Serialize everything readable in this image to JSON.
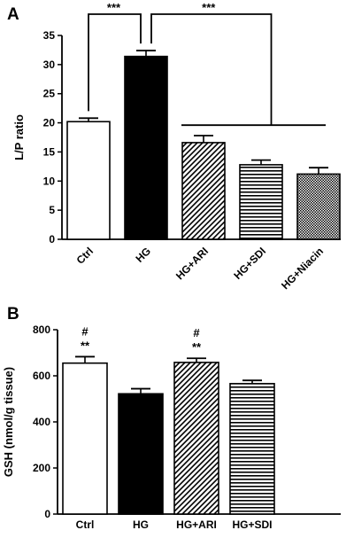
{
  "chart_data": [
    {
      "type": "bar",
      "panel": "A",
      "ylabel": "L/P ratio",
      "xlabel": "",
      "ylim": [
        0,
        35
      ],
      "yticks": [
        0,
        5,
        10,
        15,
        20,
        25,
        30,
        35
      ],
      "categories": [
        "Ctrl",
        "HG",
        "HG+ARI",
        "HG+SDI",
        "HG+Niacin"
      ],
      "values": [
        20.2,
        31.4,
        16.6,
        12.8,
        11.2
      ],
      "errors": [
        0.6,
        1.0,
        1.2,
        0.8,
        1.1
      ],
      "fills": [
        "white",
        "black",
        "diagonal-hatch",
        "horizontal-lines",
        "crosshatch"
      ],
      "annotations": [
        {
          "text": "***",
          "between": [
            "Ctrl",
            "HG"
          ]
        },
        {
          "text": "***",
          "between": [
            "HG",
            "HG+ARI, HG+SDI, HG+Niacin"
          ]
        }
      ]
    },
    {
      "type": "bar",
      "panel": "B",
      "ylabel": "GSH (nmol/g tissue)",
      "xlabel": "",
      "ylim": [
        0,
        800
      ],
      "yticks": [
        0,
        200,
        400,
        600,
        800
      ],
      "categories": [
        "Ctrl",
        "HG",
        "HG+ARI",
        "HG+SDI"
      ],
      "values": [
        655,
        522,
        658,
        566
      ],
      "errors": [
        28,
        22,
        18,
        14
      ],
      "fills": [
        "white",
        "black",
        "diagonal-hatch",
        "horizontal-lines"
      ],
      "bar_marks": [
        {
          "category": "Ctrl",
          "marks": [
            "#",
            "**"
          ]
        },
        {
          "category": "HG+ARI",
          "marks": [
            "#",
            "**"
          ]
        }
      ]
    }
  ]
}
